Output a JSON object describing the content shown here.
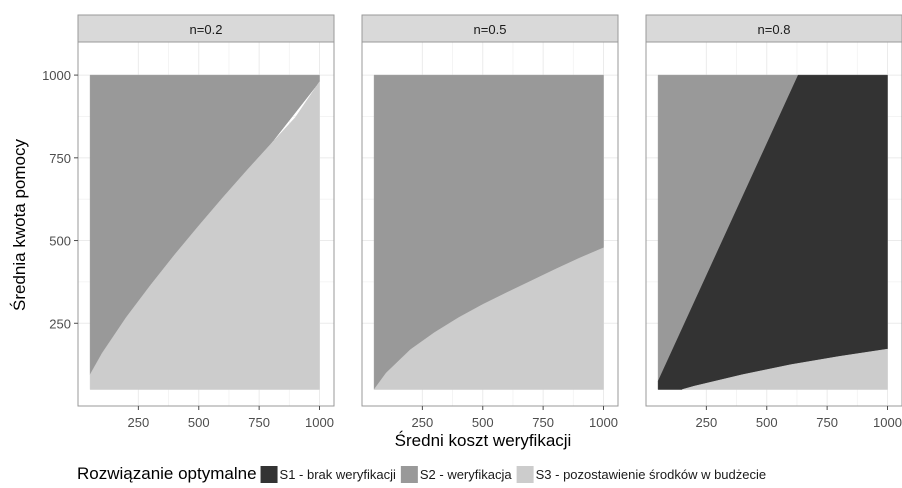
{
  "chart_data": {
    "type": "area",
    "facet_label_prefix": "n=",
    "facets": [
      {
        "label": "n=0.2",
        "n": 0.2,
        "regions": [
          {
            "series": "S2 - weryfikacja",
            "x": [
              50,
              1000,
              1000,
              50
            ],
            "y": [
              1000,
              1000,
              980,
              95
            ]
          },
          {
            "series": "S3 - pozostawienie środków w budżecie",
            "x": [
              50,
              100,
              200,
              300,
              400,
              500,
              600,
              700,
              800,
              900,
              1000,
              1000,
              50
            ],
            "y": [
              95,
              160,
              268,
              365,
              457,
              545,
              630,
              713,
              793,
              872,
              980,
              50,
              50
            ]
          }
        ]
      },
      {
        "label": "n=0.5",
        "n": 0.5,
        "regions": [
          {
            "series": "S2 - weryfikacja",
            "x": [
              50,
              1000,
              1000,
              50
            ],
            "y": [
              1000,
              1000,
              478,
              50
            ]
          },
          {
            "series": "S3 - pozostawienie środków w budżecie",
            "x": [
              50,
              100,
              200,
              300,
              400,
              500,
              600,
              700,
              800,
              900,
              1000,
              1000,
              50
            ],
            "y": [
              50,
              100,
              170,
              222,
              267,
              307,
              343,
              378,
              413,
              447,
              478,
              50,
              50
            ]
          }
        ]
      },
      {
        "label": "n=0.8",
        "n": 0.8,
        "regions": [
          {
            "series": "S2 - weryfikacja",
            "x": [
              50,
              630,
              50
            ],
            "y": [
              1000,
              1000,
              75
            ]
          },
          {
            "series": "S1 - brak weryfikacji",
            "x": [
              50,
              630,
              1000,
              1000,
              800,
              600,
              400,
              200,
              150,
              50
            ],
            "y": [
              75,
              1000,
              1000,
              172,
              150,
              125,
              95,
              60,
              50,
              50
            ]
          },
          {
            "series": "S3 - pozostawienie środków w budżecie",
            "x": [
              150,
              200,
              400,
              600,
              800,
              1000,
              1000,
              150
            ],
            "y": [
              50,
              60,
              95,
              125,
              150,
              172,
              50,
              50
            ]
          }
        ]
      }
    ],
    "series": [
      {
        "name": "S1 - brak weryfikacji",
        "color": "#333333"
      },
      {
        "name": "S2 - weryfikacja",
        "color": "#999999"
      },
      {
        "name": "S3 - pozostawienie środków w budżecie",
        "color": "#cccccc"
      }
    ],
    "xlabel": "Średni koszt weryfikacji",
    "ylabel": "Średnia kwota pomocy",
    "xlim": [
      0,
      1060
    ],
    "ylim": [
      0,
      1100
    ],
    "x_ticks": [
      250,
      500,
      750,
      1000
    ],
    "y_ticks": [
      250,
      500,
      750,
      1000
    ],
    "grid": true,
    "theme": "black and white with grey facet strips",
    "legend": {
      "title": "Rozwiązanie optymalne",
      "position": "bottom",
      "items": [
        "S1 - brak weryfikacji",
        "S2 - weryfikacja",
        "S3 - pozostawienie środków w budżecie"
      ]
    }
  }
}
